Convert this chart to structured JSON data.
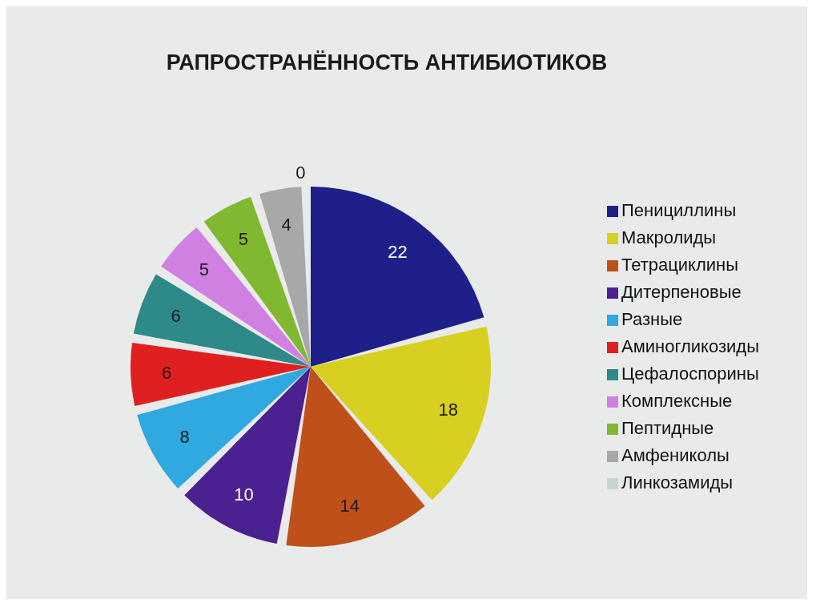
{
  "chart_data": {
    "type": "pie",
    "title": "РАПРОСТРАНЁННОСТЬ АНТИБИОТИКОВ",
    "categories": [
      "Пенициллины",
      "Макролиды",
      "Тетрациклины",
      "Дитерпеновые",
      "Разные",
      "Аминогликозиды",
      "Цефалоспорины",
      "Комплексные",
      "Пептидные",
      "Амфениколы",
      "Линкозамиды"
    ],
    "values": [
      22,
      18,
      14,
      10,
      8,
      6,
      6,
      5,
      5,
      4,
      0
    ],
    "value_labels": [
      "22",
      "18",
      "14",
      "10",
      "8",
      "6",
      "6",
      "5",
      "5",
      "4",
      "0"
    ],
    "colors": [
      "#1f1f8a",
      "#d8d020",
      "#c0501a",
      "#4b2090",
      "#30a8e0",
      "#e02020",
      "#2e8a88",
      "#d080e0",
      "#80b830",
      "#a8a8a8",
      "#c8d4d4"
    ],
    "legend": "right"
  }
}
